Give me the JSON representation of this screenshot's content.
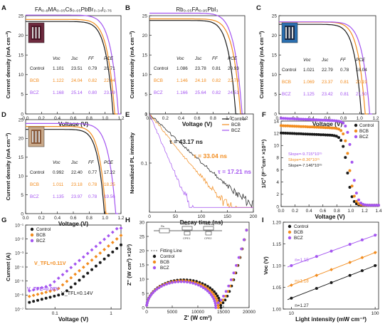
{
  "colors": {
    "Control": "#1a1a1a",
    "BCB": "#f28c1e",
    "BCZ": "#a455f0"
  },
  "chart_data": [
    {
      "id": "A",
      "type": "line",
      "title": "FA₀.₈MA₀.₀₅Cs₀.₀₅PbBr₀.₃₄I₂.₇₆",
      "xlabel": "Voltage (V)",
      "ylabel": "Current density (mA cm⁻²)",
      "xlim": [
        0,
        1.2
      ],
      "ylim": [
        0,
        25
      ],
      "xticks": [
        "0.0",
        "0.2",
        "0.4",
        "0.6",
        "0.8",
        "1.0",
        "1.2"
      ],
      "yticks": [
        "0",
        "5",
        "10",
        "15",
        "20",
        "25"
      ],
      "series": [
        {
          "name": "Control",
          "voc": 1.101,
          "jsc": 23.51
        },
        {
          "name": "BCB",
          "voc": 1.122,
          "jsc": 24.04
        },
        {
          "name": "BCZ",
          "voc": 1.168,
          "jsc": 25.14
        }
      ],
      "table": {
        "header": [
          "",
          "Voc",
          "Jsc",
          "FF",
          "PCE"
        ],
        "rows": [
          [
            "Control",
            "1.101",
            "23.51",
            "0.79",
            "20.71"
          ],
          [
            "BCB",
            "1.122",
            "24.04",
            "0.82",
            "22.04"
          ],
          [
            "BCZ",
            "1.168",
            "25.14",
            "0.80",
            "23.49"
          ]
        ]
      },
      "inset": "device-photo"
    },
    {
      "id": "B",
      "type": "line",
      "title": "Rb₀.₀₅FA₀.₉₅PbI₃",
      "xlabel": "Voltage (V)",
      "ylabel": "Current density (mA cm⁻²)",
      "xlim": [
        0,
        1.2
      ],
      "ylim": [
        0,
        25
      ],
      "xticks": [
        "0.0",
        "0.2",
        "0.4",
        "0.6",
        "0.8",
        "1.0",
        "1.2"
      ],
      "yticks": [
        "0",
        "5",
        "10",
        "15",
        "20",
        "25"
      ],
      "series": [
        {
          "name": "Control",
          "voc": 1.086,
          "jsc": 23.78
        },
        {
          "name": "BCB",
          "voc": 1.146,
          "jsc": 24.18
        },
        {
          "name": "BCZ",
          "voc": 1.166,
          "jsc": 25.64
        }
      ],
      "table": {
        "header": [
          "",
          "Voc",
          "Jsc",
          "FF",
          "PCE"
        ],
        "rows": [
          [
            "Control",
            "1.086",
            "23.78",
            "0.81",
            "20.93"
          ],
          [
            "BCB",
            "1.146",
            "24.18",
            "0.82",
            "22.73"
          ],
          [
            "BCZ",
            "1.166",
            "25.64",
            "0.82",
            "24.51"
          ]
        ]
      }
    },
    {
      "id": "C",
      "type": "line",
      "xlabel": "Voltage (V)",
      "ylabel": "Current density (mA cm⁻²)",
      "xlim": [
        0,
        1.2
      ],
      "ylim": [
        0,
        25
      ],
      "xticks": [
        "0.0",
        "0.2",
        "0.4",
        "0.6",
        "0.8",
        "1.0",
        "1.2"
      ],
      "yticks": [
        "0",
        "5",
        "10",
        "15",
        "20",
        "25"
      ],
      "series": [
        {
          "name": "Control",
          "voc": 1.021,
          "jsc": 22.79
        },
        {
          "name": "BCB",
          "voc": 1.069,
          "jsc": 23.37
        },
        {
          "name": "BCZ",
          "voc": 1.125,
          "jsc": 23.42
        }
      ],
      "table": {
        "header": [
          "",
          "Voc",
          "Jsc",
          "FF",
          "PCE"
        ],
        "rows": [
          [
            "Control",
            "1.021",
            "22.79",
            "0.78",
            "18.04"
          ],
          [
            "BCB",
            "1.069",
            "23.37",
            "0.81",
            "20.19"
          ],
          [
            "BCZ",
            "1.125",
            "23.42",
            "0.81",
            "21.50"
          ]
        ]
      },
      "inset": "device-photo"
    },
    {
      "id": "D",
      "type": "line",
      "xlabel": "Voltage (V)",
      "ylabel": "Current density (mA cm⁻²)",
      "xlim": [
        0,
        1.2
      ],
      "ylim": [
        0,
        25
      ],
      "xticks": [
        "0.0",
        "0.2",
        "0.4",
        "0.6",
        "0.8",
        "1.0",
        "1.2"
      ],
      "yticks": [
        "0",
        "5",
        "10",
        "15",
        "20",
        "25"
      ],
      "series": [
        {
          "name": "Control",
          "voc": 0.992,
          "jsc": 22.4
        },
        {
          "name": "BCB",
          "voc": 1.011,
          "jsc": 23.18
        },
        {
          "name": "BCZ",
          "voc": 1.135,
          "jsc": 23.97
        }
      ],
      "table": {
        "header": [
          "",
          "Voc",
          "Jsc",
          "FF",
          "PCE"
        ],
        "rows": [
          [
            "Control",
            "0.992",
            "22.40",
            "0.77",
            "17.22"
          ],
          [
            "BCB",
            "1.011",
            "23.18",
            "0.78",
            "18.25"
          ],
          [
            "BCZ",
            "1.135",
            "23.97",
            "0.78",
            "19.56"
          ]
        ]
      },
      "inset": "device-photo"
    },
    {
      "id": "E",
      "type": "line",
      "scale": "log-y",
      "xlabel": "Decay time (ns)",
      "ylabel": "Normalized PL intensity",
      "xlim": [
        0,
        200
      ],
      "ylim": [
        0.01,
        1
      ],
      "xticks": [
        "0",
        "50",
        "100",
        "150",
        "200"
      ],
      "yticks": [
        "0.1",
        "1"
      ],
      "legend": "top-right",
      "series": [
        {
          "name": "Control",
          "tau": 43.17
        },
        {
          "name": "BCB",
          "tau": 33.04
        },
        {
          "name": "BCZ",
          "tau": 17.21
        }
      ],
      "annotations": [
        "τ = 43.17 ns",
        "τ = 33.04 ns",
        "τ = 17.21 ns"
      ]
    },
    {
      "id": "F",
      "type": "scatter",
      "xlabel": "Voltage (V)",
      "ylabel": "1/C² (F⁻²cm⁴ ×10¹⁵)",
      "xlim": [
        0,
        1.4
      ],
      "ylim": [
        0,
        14
      ],
      "xticks": [
        "0.0",
        "0.2",
        "0.4",
        "0.6",
        "0.8",
        "1.0",
        "1.2",
        "1.4"
      ],
      "yticks": [
        "0",
        "2",
        "4",
        "6",
        "8",
        "10",
        "12",
        "14"
      ],
      "legend": "top-right",
      "series": [
        {
          "name": "Control",
          "y0": 11.3,
          "knee": 0.95,
          "mark": "circle"
        },
        {
          "name": "BCB",
          "y0": 12.5,
          "knee": 0.98,
          "mark": "circle"
        },
        {
          "name": "BCZ",
          "y0": 13.7,
          "knee": 1.02,
          "mark": "circle"
        }
      ],
      "annotations": [
        "Slope=-9.715*10¹⁵",
        "Slope=-8.36*10¹⁵",
        "Slope=-7.146*10¹⁵"
      ]
    },
    {
      "id": "G",
      "type": "scatter",
      "scale": "log-log",
      "xlabel": "Voltage (V)",
      "ylabel": "Current (A)",
      "xlim": [
        0.03,
        1.5
      ],
      "ylim": [
        1e-07,
        0.1
      ],
      "xticks": [
        "0.1",
        "1"
      ],
      "yticks": [
        "10⁻⁷",
        "10⁻⁶",
        "10⁻⁵",
        "10⁻⁴",
        "10⁻³",
        "10⁻²",
        "10⁻¹"
      ],
      "legend": "top-left",
      "series": [
        {
          "name": "Control",
          "mark": "circle",
          "vtfl": 0.14
        },
        {
          "name": "BCB",
          "mark": "diamond",
          "vtfl": 0.11
        },
        {
          "name": "BCZ",
          "mark": "diamond",
          "vtfl": 0.08
        }
      ],
      "annotations": [
        "V_TFL=0.11V",
        "V_TFL=0.08V",
        "V_TFL=0.14V"
      ]
    },
    {
      "id": "H",
      "type": "scatter",
      "xlabel": "Z' (W cm²)",
      "ylabel": "Z'' (W cm²) ×10³)",
      "xlim": [
        0,
        20000
      ],
      "ylim": [
        0,
        30
      ],
      "xticks": [
        "0",
        "5000",
        "10000",
        "15000",
        "20000"
      ],
      "yticks": [
        "0",
        "5",
        "10",
        "15",
        "20",
        "25",
        "30"
      ],
      "legend": "left",
      "series": [
        {
          "name": "Control",
          "arc_end": 14500
        },
        {
          "name": "BCB",
          "arc_end": 14000
        },
        {
          "name": "BCZ",
          "arc_end": 13500
        }
      ],
      "fit_label": "Fitting Line",
      "inset": "equivalent-circuit",
      "circuit_labels": [
        "Rs",
        "Rrec",
        "CPE1",
        "Rtrans",
        "CPE2"
      ]
    },
    {
      "id": "I",
      "type": "scatter",
      "scale": "log-x",
      "xlabel": "Light intensity (mW cm⁻²)",
      "ylabel": "Voc (V)",
      "xlim": [
        8,
        110
      ],
      "ylim": [
        1.0,
        1.2
      ],
      "xticks": [
        "10",
        "100"
      ],
      "yticks": [
        "1.00",
        "1.05",
        "1.10",
        "1.15",
        "1.20"
      ],
      "legend": "top-left",
      "series": [
        {
          "name": "Control",
          "voc_at_10": 1.025,
          "voc_at_100": 1.1,
          "mark": "circle",
          "n": "n=1.27"
        },
        {
          "name": "BCB",
          "voc_at_10": 1.055,
          "voc_at_100": 1.13,
          "mark": "diamond",
          "n": "n=1.18"
        },
        {
          "name": "BCZ",
          "voc_at_10": 1.1,
          "voc_at_100": 1.17,
          "mark": "circle",
          "n": "n=1.15"
        }
      ]
    }
  ]
}
